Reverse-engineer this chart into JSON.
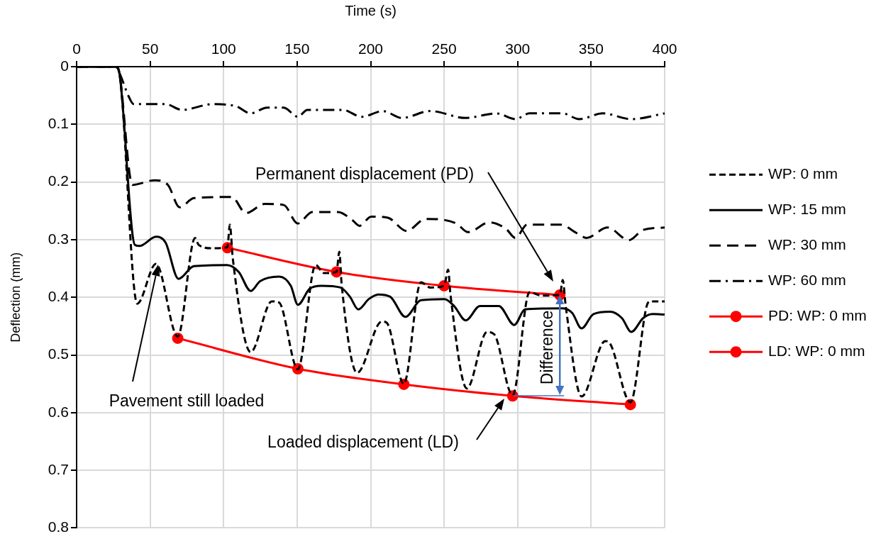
{
  "chart_data": {
    "type": "line",
    "xlabel": "Time (s)",
    "ylabel": "Deflection (mm)",
    "xlim": [
      0,
      400
    ],
    "xticks": [
      0,
      50,
      100,
      150,
      200,
      250,
      300,
      350,
      400
    ],
    "ylim": [
      0.8,
      0
    ],
    "yticks": [
      0,
      0.1,
      0.2,
      0.3,
      0.4,
      0.5,
      0.6,
      0.7,
      0.8
    ],
    "grid": true,
    "legend": "right",
    "marker": "none",
    "series": [
      {
        "name": "WP: 0 mm",
        "color": "#000000",
        "line_style": "dotted",
        "x": [
          0,
          26.7,
          29,
          41.2,
          54,
          68.8,
          80.6,
          83,
          92.6,
          102.6,
          104.2,
          106.3,
          118.4,
          132.8,
          137.7,
          150.5,
          162.6,
          168.2,
          176.8,
          178.7,
          180.3,
          190.8,
          207.6,
          210.9,
          222.6,
          234.2,
          240.6,
          250,
          252.7,
          254.3,
          265.5,
          279.2,
          284,
          296.6,
          308.1,
          316.2,
          328.7,
          330.7,
          332.7,
          343.5,
          359.6,
          362.8,
          376.7,
          387.8,
          390.2,
          400
        ],
        "values": [
          0,
          0,
          0.01,
          0.411,
          0.342,
          0.468,
          0.297,
          0.309,
          0.315,
          0.313,
          0.274,
          0.334,
          0.495,
          0.407,
          0.409,
          0.525,
          0.344,
          0.358,
          0.356,
          0.321,
          0.378,
          0.531,
          0.442,
          0.444,
          0.55,
          0.374,
          0.383,
          0.38,
          0.352,
          0.395,
          0.558,
          0.46,
          0.464,
          0.57,
          0.391,
          0.397,
          0.396,
          0.37,
          0.415,
          0.572,
          0.476,
          0.48,
          0.582,
          0.415,
          0.407,
          0.407
        ]
      },
      {
        "name": "WP: 15 mm",
        "color": "#000000",
        "line_style": "solid",
        "x": [
          0,
          26.7,
          29,
          39.6,
          42.8,
          54,
          60.5,
          69.3,
          79.8,
          102.3,
          110.3,
          118.4,
          124.8,
          137.7,
          145.7,
          150.5,
          158.6,
          166.6,
          179.5,
          185.9,
          191.6,
          198.8,
          205.2,
          213.3,
          223.7,
          234.2,
          250.3,
          256.7,
          264.7,
          274.4,
          287.2,
          297.7,
          305,
          330.7,
          337.1,
          343.5,
          351.6,
          362.8,
          370.9,
          377.3,
          385.4,
          391.8,
          400
        ],
        "values": [
          0,
          0,
          0.01,
          0.309,
          0.311,
          0.295,
          0.305,
          0.368,
          0.346,
          0.344,
          0.356,
          0.389,
          0.372,
          0.364,
          0.38,
          0.413,
          0.385,
          0.38,
          0.383,
          0.399,
          0.421,
          0.403,
          0.395,
          0.399,
          0.434,
          0.405,
          0.403,
          0.415,
          0.44,
          0.415,
          0.415,
          0.448,
          0.421,
          0.419,
          0.427,
          0.454,
          0.429,
          0.425,
          0.436,
          0.46,
          0.436,
          0.429,
          0.43
        ]
      },
      {
        "name": "WP: 30 mm",
        "color": "#000000",
        "line_style": "dashed",
        "x": [
          0,
          26.7,
          29,
          38,
          53.2,
          62.1,
          70.1,
          79.8,
          105.5,
          115.2,
          128,
          140.9,
          150.5,
          160.2,
          177.9,
          187.5,
          192.4,
          200.4,
          211.7,
          224.5,
          237.4,
          258.3,
          266.3,
          280.8,
          292,
          298.5,
          306.5,
          329.1,
          340.3,
          346.8,
          361.2,
          375.7,
          385.4,
          400
        ],
        "values": [
          0,
          0,
          0.01,
          0.205,
          0.197,
          0.205,
          0.244,
          0.228,
          0.226,
          0.254,
          0.238,
          0.24,
          0.272,
          0.252,
          0.252,
          0.266,
          0.276,
          0.26,
          0.262,
          0.285,
          0.264,
          0.272,
          0.287,
          0.27,
          0.281,
          0.297,
          0.274,
          0.274,
          0.289,
          0.297,
          0.279,
          0.301,
          0.283,
          0.279
        ]
      },
      {
        "name": "WP: 60 mm",
        "color": "#000000",
        "line_style": "dashdot",
        "x": [
          0,
          26.7,
          29,
          35.5,
          38.8,
          60.5,
          71.7,
          92.6,
          108.7,
          118.4,
          129.6,
          140.9,
          150.5,
          157,
          181.1,
          194,
          208.4,
          221.3,
          240.6,
          264.7,
          285.6,
          298.5,
          308.1,
          330.7,
          341.9,
          358,
          377.3,
          400
        ],
        "values": [
          0,
          0,
          0.01,
          0.052,
          0.065,
          0.065,
          0.075,
          0.065,
          0.069,
          0.081,
          0.071,
          0.071,
          0.087,
          0.075,
          0.075,
          0.087,
          0.077,
          0.089,
          0.077,
          0.089,
          0.081,
          0.091,
          0.081,
          0.081,
          0.091,
          0.081,
          0.091,
          0.081
        ]
      },
      {
        "name": "PD: WP: 0 mm",
        "color": "#ff0000",
        "line_style": "solid",
        "marker": "circle",
        "x": [
          102.6,
          176.8,
          250,
          328.7
        ],
        "values": [
          0.314,
          0.356,
          0.38,
          0.396
        ]
      },
      {
        "name": "LD: WP: 0 mm",
        "color": "#ff0000",
        "line_style": "solid",
        "marker": "circle",
        "x": [
          68.8,
          150.5,
          222.6,
          296.6,
          376.7
        ],
        "values": [
          0.471,
          0.524,
          0.551,
          0.571,
          0.586
        ]
      }
    ],
    "annotations": [
      "Permanent displacement (PD)",
      "Pavement still loaded",
      "Loaded displacement (LD)",
      {
        "text": "Difference",
        "x": 328.7,
        "y": 0.396
      }
    ]
  }
}
